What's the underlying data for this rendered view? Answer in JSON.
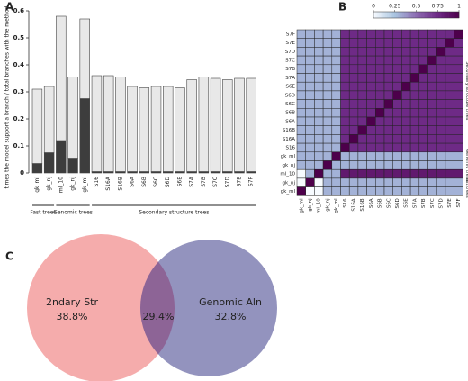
{
  "chart_data": [
    {
      "type": "bar",
      "panel": "A",
      "ylabel": "times the model support a branch / total branches with the method",
      "categories": [
        "gk_ml",
        "gk_nj",
        "ml_10",
        "gk_nj",
        "gk_ml",
        "S16",
        "S16A",
        "S16B",
        "S6A",
        "S6B",
        "S6C",
        "S6D",
        "S6E",
        "S7A",
        "S7B",
        "S7C",
        "S7D",
        "S7E",
        "S7F"
      ],
      "series": [
        {
          "color": "#3d3d3d",
          "values": [
            0.035,
            0.075,
            0.12,
            0.055,
            0.275,
            0.005,
            0.005,
            0.005,
            0.005,
            0.005,
            0.005,
            0.005,
            0.005,
            0.005,
            0.005,
            0.005,
            0.005,
            0.005,
            0.005
          ]
        },
        {
          "color": "#e8e8e8",
          "values": [
            0.275,
            0.245,
            0.46,
            0.3,
            0.295,
            0.355,
            0.355,
            0.35,
            0.315,
            0.31,
            0.315,
            0.315,
            0.31,
            0.34,
            0.35,
            0.345,
            0.34,
            0.345,
            0.345
          ]
        }
      ],
      "groups": [
        {
          "name": "Fast trees",
          "size": 2
        },
        {
          "name": "Genomic trees",
          "size": 3
        },
        {
          "name": "Secondary structure trees",
          "size": 14
        }
      ],
      "ylim": [
        0,
        0.6
      ],
      "yticks": [
        0,
        0.1,
        0.2,
        0.3,
        0.4,
        0.5,
        0.6
      ]
    },
    {
      "type": "heatmap",
      "panel": "B",
      "x_labels": [
        "gk_ml",
        "gk_nj",
        "ml_10",
        "gk_nj",
        "gk_ml",
        "S16",
        "S16A",
        "S16B",
        "S6A",
        "S6B",
        "S6C",
        "S6D",
        "S6E",
        "S7A",
        "S7B",
        "S7C",
        "S7D",
        "S7E",
        "S7F"
      ],
      "y_labels": [
        "S7F",
        "S7E",
        "S7D",
        "S7C",
        "S7B",
        "S7A",
        "S6E",
        "S6D",
        "S6C",
        "S6B",
        "S6A",
        "S16B",
        "S16A",
        "S16",
        "gk_ml",
        "gk_nj",
        "ml_10",
        "gk_nj",
        "gk_ml"
      ],
      "row_groups": [
        {
          "name": "Secondary structure trees",
          "size": 14
        },
        {
          "name": "Genomic trees",
          "size": 3
        },
        {
          "name": "Fast trees",
          "size": 2
        }
      ],
      "values": [
        [
          0.3,
          0.3,
          0.3,
          0.3,
          0.3,
          0.75,
          0.75,
          0.75,
          0.75,
          0.75,
          0.75,
          0.75,
          0.75,
          0.75,
          0.75,
          0.75,
          0.75,
          0.75,
          1
        ],
        [
          0.3,
          0.3,
          0.3,
          0.3,
          0.3,
          0.75,
          0.75,
          0.75,
          0.75,
          0.75,
          0.75,
          0.75,
          0.75,
          0.75,
          0.75,
          0.75,
          0.75,
          1,
          0.75
        ],
        [
          0.3,
          0.3,
          0.3,
          0.3,
          0.3,
          0.75,
          0.75,
          0.75,
          0.75,
          0.75,
          0.75,
          0.75,
          0.75,
          0.75,
          0.75,
          0.75,
          1,
          0.75,
          0.75
        ],
        [
          0.3,
          0.3,
          0.3,
          0.3,
          0.3,
          0.75,
          0.75,
          0.75,
          0.75,
          0.75,
          0.75,
          0.75,
          0.75,
          0.75,
          0.75,
          1,
          0.75,
          0.75,
          0.75
        ],
        [
          0.3,
          0.3,
          0.3,
          0.3,
          0.3,
          0.75,
          0.75,
          0.75,
          0.75,
          0.75,
          0.75,
          0.75,
          0.75,
          0.75,
          1,
          0.75,
          0.75,
          0.75,
          0.75
        ],
        [
          0.3,
          0.3,
          0.3,
          0.3,
          0.3,
          0.75,
          0.75,
          0.75,
          0.75,
          0.75,
          0.75,
          0.75,
          0.75,
          1,
          0.75,
          0.75,
          0.75,
          0.75,
          0.75
        ],
        [
          0.3,
          0.3,
          0.3,
          0.3,
          0.3,
          0.75,
          0.75,
          0.75,
          0.75,
          0.75,
          0.75,
          0.75,
          1,
          0.75,
          0.75,
          0.75,
          0.75,
          0.75,
          0.75
        ],
        [
          0.3,
          0.3,
          0.3,
          0.3,
          0.3,
          0.75,
          0.75,
          0.75,
          0.75,
          0.75,
          0.75,
          1,
          0.75,
          0.75,
          0.75,
          0.75,
          0.75,
          0.75,
          0.75
        ],
        [
          0.3,
          0.3,
          0.3,
          0.3,
          0.3,
          0.75,
          0.75,
          0.75,
          0.75,
          0.75,
          1,
          0.75,
          0.75,
          0.75,
          0.75,
          0.75,
          0.75,
          0.75,
          0.75
        ],
        [
          0.3,
          0.3,
          0.3,
          0.3,
          0.3,
          0.75,
          0.75,
          0.75,
          0.75,
          1,
          0.75,
          0.75,
          0.75,
          0.75,
          0.75,
          0.75,
          0.75,
          0.75,
          0.75
        ],
        [
          0.3,
          0.3,
          0.3,
          0.3,
          0.3,
          0.75,
          0.75,
          0.75,
          1,
          0.75,
          0.75,
          0.75,
          0.75,
          0.75,
          0.75,
          0.75,
          0.75,
          0.75,
          0.75
        ],
        [
          0.3,
          0.3,
          0.3,
          0.3,
          0.3,
          0.75,
          0.75,
          1,
          0.75,
          0.75,
          0.75,
          0.75,
          0.75,
          0.75,
          0.75,
          0.75,
          0.75,
          0.75,
          0.75
        ],
        [
          0.3,
          0.3,
          0.3,
          0.3,
          0.3,
          0.75,
          1,
          0.75,
          0.75,
          0.75,
          0.75,
          0.75,
          0.75,
          0.75,
          0.75,
          0.75,
          0.75,
          0.75,
          0.75
        ],
        [
          0.3,
          0.3,
          0.3,
          0.3,
          0.3,
          1,
          0.75,
          0.75,
          0.75,
          0.75,
          0.75,
          0.75,
          0.75,
          0.75,
          0.75,
          0.75,
          0.75,
          0.75,
          0.75
        ],
        [
          0.3,
          0.3,
          0.3,
          0.3,
          1,
          0.3,
          0.3,
          0.3,
          0.3,
          0.3,
          0.3,
          0.3,
          0.3,
          0.3,
          0.3,
          0.3,
          0.3,
          0.3,
          0.3
        ],
        [
          0.3,
          0.3,
          0.3,
          1,
          0.3,
          0.3,
          0.3,
          0.3,
          0.3,
          0.3,
          0.3,
          0.3,
          0.3,
          0.3,
          0.3,
          0.3,
          0.3,
          0.3,
          0.3
        ],
        [
          0,
          0.3,
          1,
          0.3,
          0.3,
          0.85,
          0.85,
          0.85,
          0.85,
          0.85,
          0.85,
          0.85,
          0.85,
          0.85,
          0.85,
          0.85,
          0.85,
          0.85,
          0.85
        ],
        [
          0,
          1,
          0,
          0.3,
          0.3,
          0.3,
          0.3,
          0.3,
          0.3,
          0.3,
          0.3,
          0.3,
          0.3,
          0.3,
          0.3,
          0.3,
          0.3,
          0.3,
          0.3
        ],
        [
          1,
          0,
          0,
          0.3,
          0.3,
          0.3,
          0.3,
          0.3,
          0.3,
          0.3,
          0.3,
          0.3,
          0.3,
          0.3,
          0.3,
          0.3,
          0.3,
          0.3,
          0.3
        ]
      ],
      "colorscale": [
        "#f7fbff",
        "#a9c4e0",
        "#8c6bb1",
        "#6e2a86",
        "#4d004b"
      ],
      "clim": [
        0,
        1
      ],
      "cticks": [
        0,
        0.25,
        0.5,
        0.75,
        1
      ]
    },
    {
      "type": "venn",
      "panel": "C",
      "sets": [
        {
          "name": "2ndary Str",
          "value": 38.8,
          "value_label": "38.8%",
          "color": "#f4a3a3"
        },
        {
          "name": "Genomic Aln",
          "value": 32.8,
          "value_label": "32.8%",
          "color": "#6f6fa8"
        }
      ],
      "overlap": {
        "value": 29.4,
        "value_label": "29.4%"
      }
    }
  ]
}
